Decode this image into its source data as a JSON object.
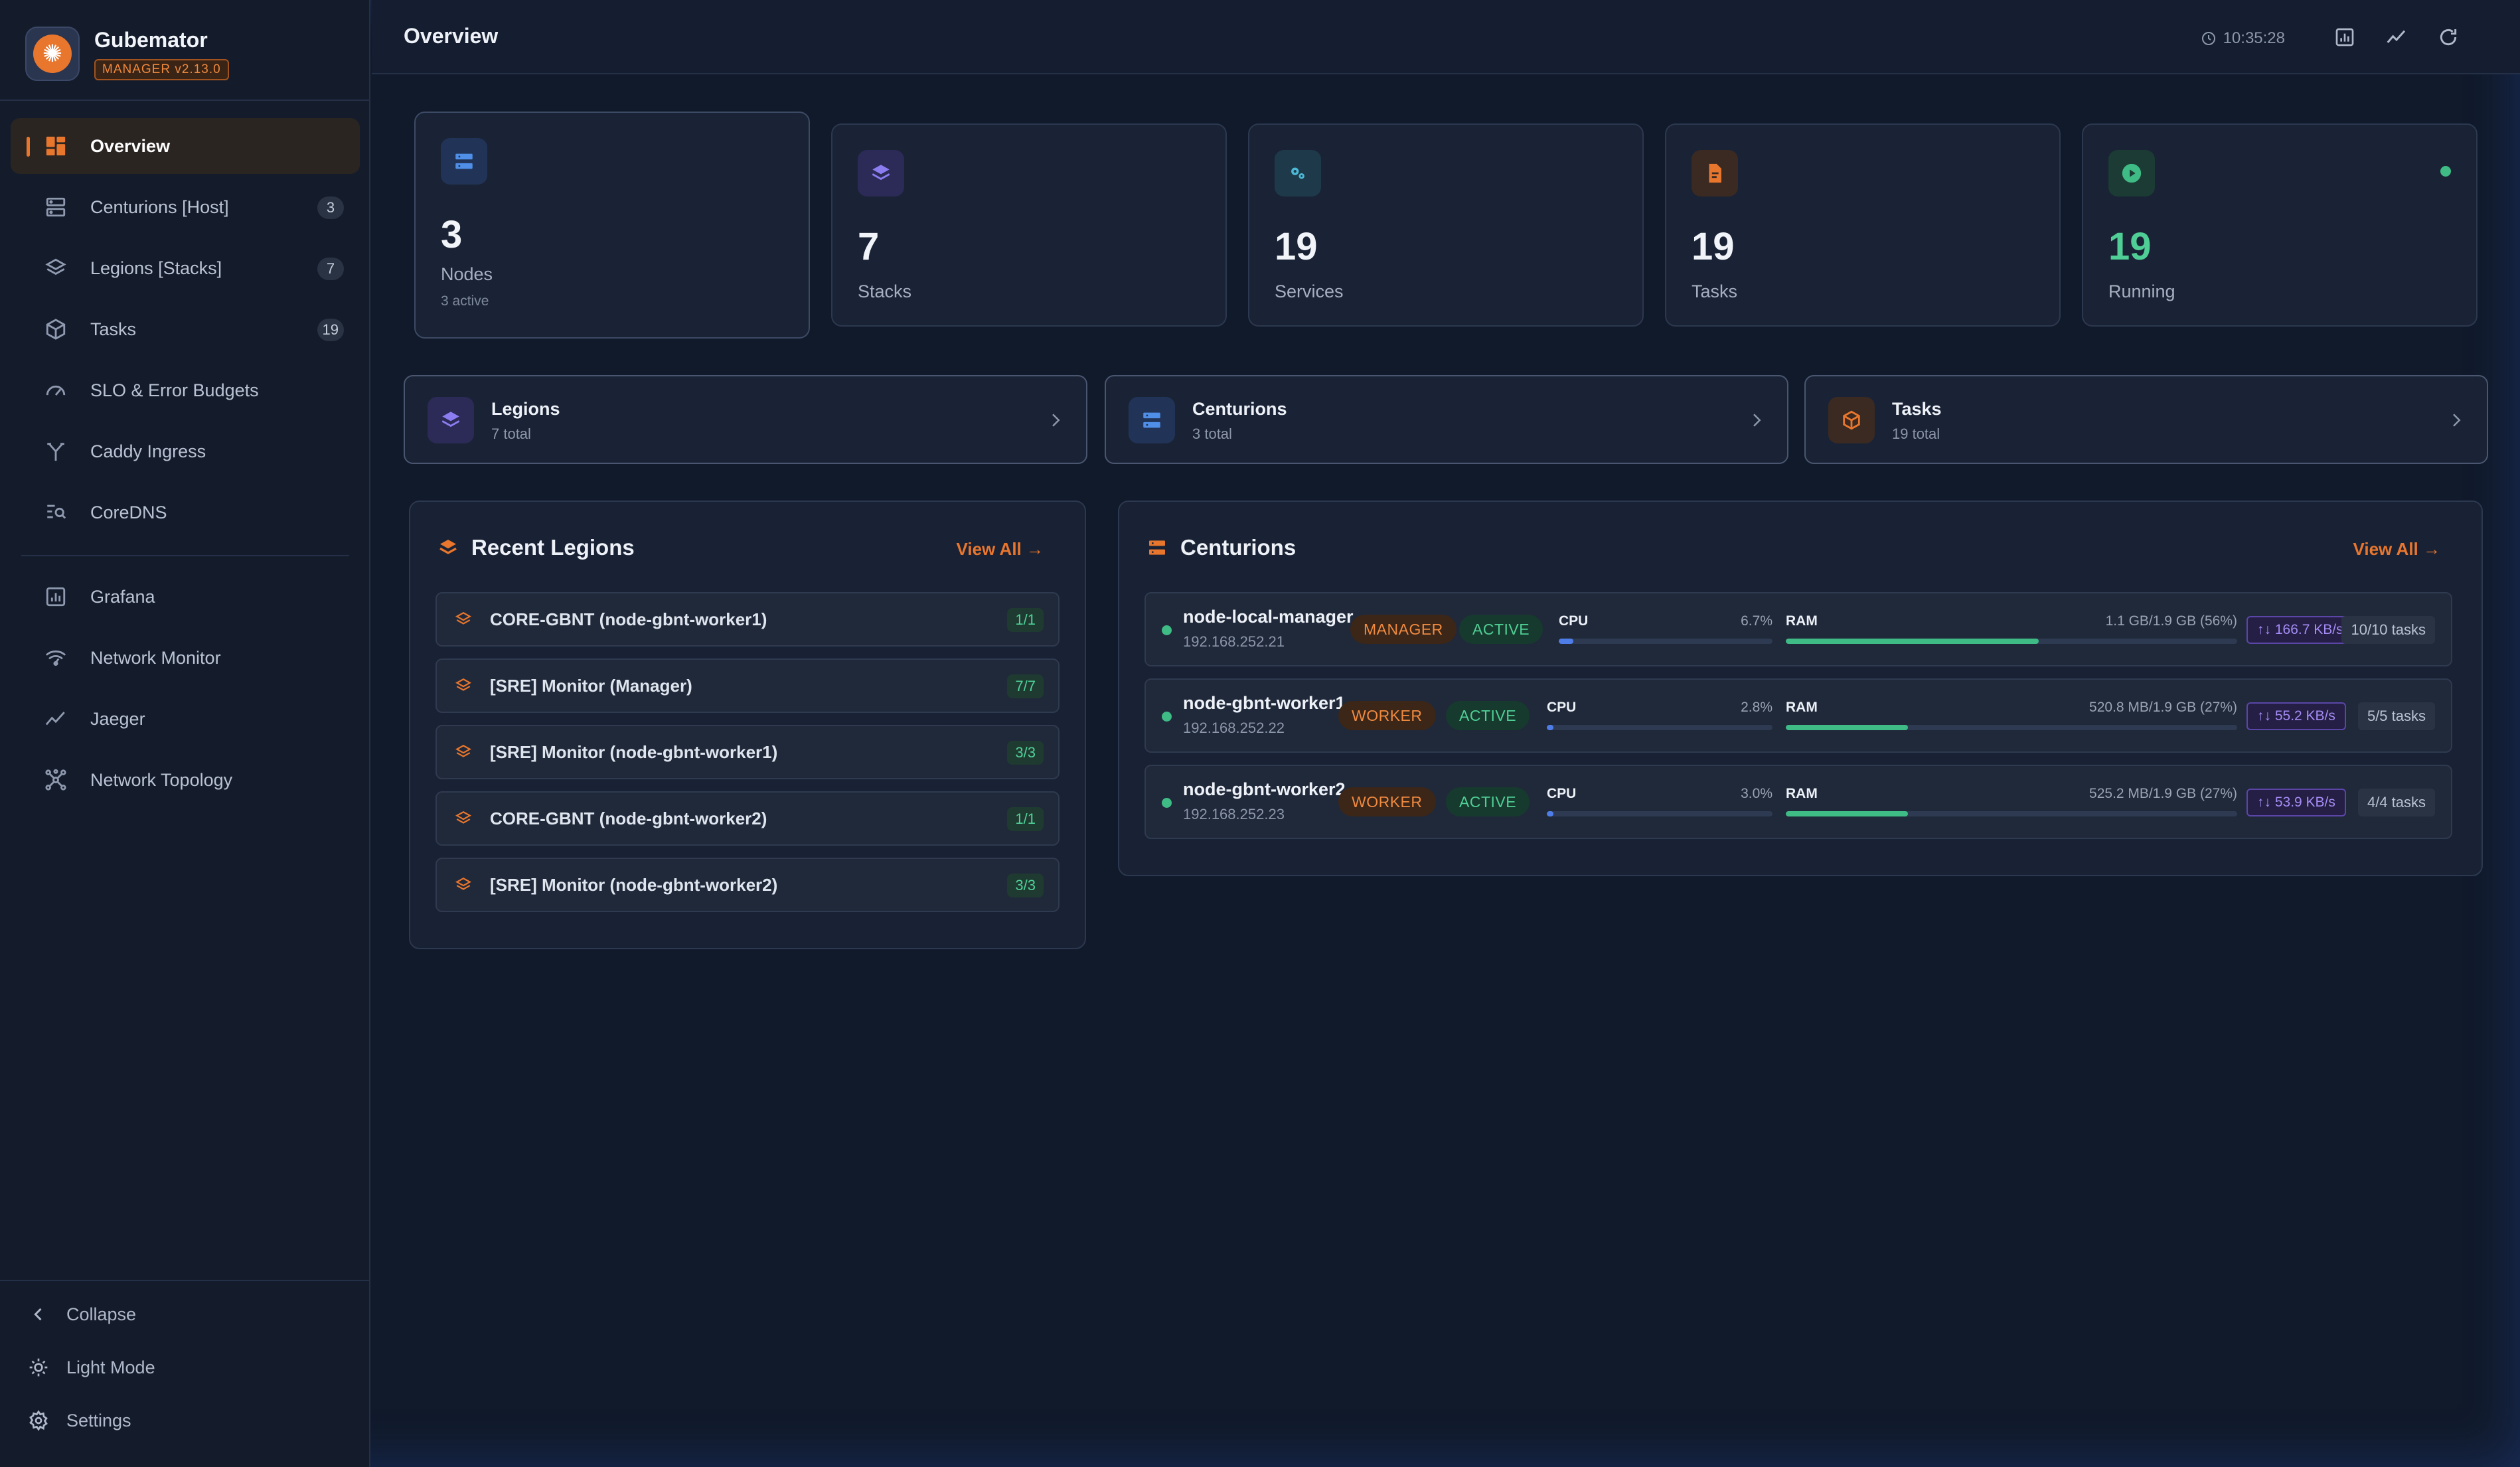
{
  "app": {
    "name": "Gubemator",
    "version": "MANAGER v2.13.0"
  },
  "sidebar": {
    "items": [
      {
        "label": "Overview",
        "icon": "dashboard-icon",
        "badge": null,
        "active": true
      },
      {
        "label": "Centurions [Host]",
        "icon": "server-icon",
        "badge": "3"
      },
      {
        "label": "Legions [Stacks]",
        "icon": "layers-icon",
        "badge": "7"
      },
      {
        "label": "Tasks",
        "icon": "cube-icon",
        "badge": "19"
      },
      {
        "label": "SLO & Error Budgets",
        "icon": "gauge-icon",
        "badge": null
      },
      {
        "label": "Caddy Ingress",
        "icon": "fork-icon",
        "badge": null
      },
      {
        "label": "CoreDNS",
        "icon": "search-list-icon",
        "badge": null
      },
      {
        "label": "Grafana",
        "icon": "chart-icon",
        "badge": null
      },
      {
        "label": "Network Monitor",
        "icon": "wifi-icon",
        "badge": null
      },
      {
        "label": "Jaeger",
        "icon": "trend-icon",
        "badge": null
      },
      {
        "label": "Network Topology",
        "icon": "topology-icon",
        "badge": null
      }
    ],
    "footer": {
      "collapse": "Collapse",
      "theme": "Light Mode",
      "settings": "Settings"
    }
  },
  "header": {
    "title": "Overview",
    "time": "10:35:28"
  },
  "stats": [
    {
      "value": "3",
      "label": "Nodes",
      "sub": "3 active",
      "icon": "server-icon",
      "color": "#4f8fe8"
    },
    {
      "value": "7",
      "label": "Stacks",
      "icon": "layers-icon",
      "color": "#8b7cf0"
    },
    {
      "value": "19",
      "label": "Services",
      "icon": "gears-icon",
      "color": "#4cb8d6"
    },
    {
      "value": "19",
      "label": "Tasks",
      "icon": "file-icon",
      "color": "#e8762d"
    },
    {
      "value": "19",
      "label": "Running",
      "icon": "play-icon",
      "color": "#3fbb86"
    }
  ],
  "nav_cards": [
    {
      "title": "Legions",
      "sub": "7 total"
    },
    {
      "title": "Centurions",
      "sub": "3 total"
    },
    {
      "title": "Tasks",
      "sub": "19 total"
    }
  ],
  "recent_legions": {
    "title": "Recent Legions",
    "view_all": "View All →",
    "rows": [
      {
        "name": "CORE-GBNT (node-gbnt-worker1)",
        "replicas": "1/1"
      },
      {
        "name": "[SRE] Monitor (Manager)",
        "replicas": "7/7"
      },
      {
        "name": "[SRE] Monitor (node-gbnt-worker1)",
        "replicas": "3/3"
      },
      {
        "name": "CORE-GBNT (node-gbnt-worker2)",
        "replicas": "1/1"
      },
      {
        "name": "[SRE] Monitor (node-gbnt-worker2)",
        "replicas": "3/3"
      }
    ]
  },
  "centurions": {
    "title": "Centurions",
    "view_all": "View All →",
    "cpu_label": "CPU",
    "ram_label": "RAM",
    "rows": [
      {
        "name": "node-local-manager",
        "ip": "192.168.252.21",
        "role": "MANAGER",
        "status": "ACTIVE",
        "cpu": "6.7%",
        "cpu_pct": 6.7,
        "ram": "1.1 GB/1.9 GB (56%)",
        "ram_pct": 56,
        "net": "↑↓ 166.7 KB/s",
        "tasks": "10/10 tasks"
      },
      {
        "name": "node-gbnt-worker1",
        "ip": "192.168.252.22",
        "role": "WORKER",
        "status": "ACTIVE",
        "cpu": "2.8%",
        "cpu_pct": 2.8,
        "ram": "520.8 MB/1.9 GB (27%)",
        "ram_pct": 27,
        "net": "↑↓ 55.2 KB/s",
        "tasks": "5/5 tasks"
      },
      {
        "name": "node-gbnt-worker2",
        "ip": "192.168.252.23",
        "role": "WORKER",
        "status": "ACTIVE",
        "cpu": "3.0%",
        "cpu_pct": 3.0,
        "ram": "525.2 MB/1.9 GB (27%)",
        "ram_pct": 27,
        "net": "↑↓ 53.9 KB/s",
        "tasks": "4/4 tasks"
      }
    ]
  }
}
